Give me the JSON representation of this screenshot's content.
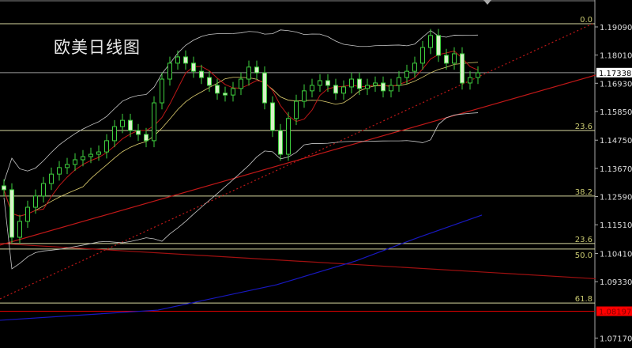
{
  "title": "欧美日线图",
  "chart_data": {
    "type": "candlestick",
    "title": "欧美日线图",
    "ylim": [
      1.068,
      1.201
    ],
    "y_ticks": [
      "1.19090",
      "1.18010",
      "1.16930",
      "1.15850",
      "1.14750",
      "1.13670",
      "1.12590",
      "1.11510",
      "1.10410",
      "1.09330",
      "1.07170"
    ],
    "current_price": "1.17338",
    "marked_price": "1.08197",
    "close": [
      1.1285,
      1.1103,
      1.1164,
      1.1218,
      1.1261,
      1.1309,
      1.1345,
      1.137,
      1.1382,
      1.14,
      1.1412,
      1.1421,
      1.143,
      1.1473,
      1.1527,
      1.1551,
      1.1512,
      1.1497,
      1.1473,
      1.1618,
      1.1709,
      1.177,
      1.1794,
      1.177,
      1.1739,
      1.1715,
      1.1685,
      1.1655,
      1.1648,
      1.1673,
      1.1709,
      1.1755,
      1.1733,
      1.1618,
      1.1512,
      1.1421,
      1.1558,
      1.1624,
      1.1664,
      1.1685,
      1.1703,
      1.1685,
      1.1655,
      1.1679,
      1.1709,
      1.1673,
      1.1685,
      1.1694,
      1.1664,
      1.1685,
      1.1715,
      1.1739,
      1.177,
      1.183,
      1.1876,
      1.18,
      1.177,
      1.1806,
      1.1694,
      1.1715,
      1.1733
    ],
    "fib_levels": [
      {
        "label": "0.0",
        "price": 1.1921
      },
      {
        "label": "23.6",
        "price": 1.1512
      },
      {
        "label": "38.2",
        "price": 1.1261
      },
      {
        "label": "23.6",
        "price": 1.1079
      },
      {
        "label": "50.0",
        "price": 1.1058
      },
      {
        "label": "61.8",
        "price": 1.0851
      }
    ],
    "trendlines": [
      {
        "style": "solid",
        "color": "#c01818",
        "points": [
          [
            -0.5,
            1.1073
          ],
          [
            79.5,
            1.1764
          ]
        ]
      },
      {
        "style": "dotted",
        "color": "#c01818",
        "points": [
          [
            -0.5,
            1.0867
          ],
          [
            74.5,
            1.1921
          ]
        ]
      },
      {
        "style": "solid",
        "color": "#a01010",
        "points": [
          [
            -0.5,
            1.1079
          ],
          [
            79.5,
            1.0936
          ]
        ]
      },
      {
        "style": "solid",
        "color": "#1818c0",
        "points": [
          [
            -0.5,
            1.0785
          ],
          [
            19.5,
            1.0824
          ],
          [
            34.5,
            1.0921
          ],
          [
            44.5,
            1.1012
          ],
          [
            52.5,
            1.1103
          ],
          [
            60.5,
            1.1188
          ]
        ]
      }
    ],
    "colors": {
      "bull": "#3ecf3e",
      "bear": "#d8f0c8",
      "bands": "#c8c8c8",
      "ma_fast": "#c01818",
      "ma_slow": "#e0d070",
      "fib": "#d8d8a0",
      "current": "#ffffff",
      "marked": "#ff0000"
    }
  }
}
